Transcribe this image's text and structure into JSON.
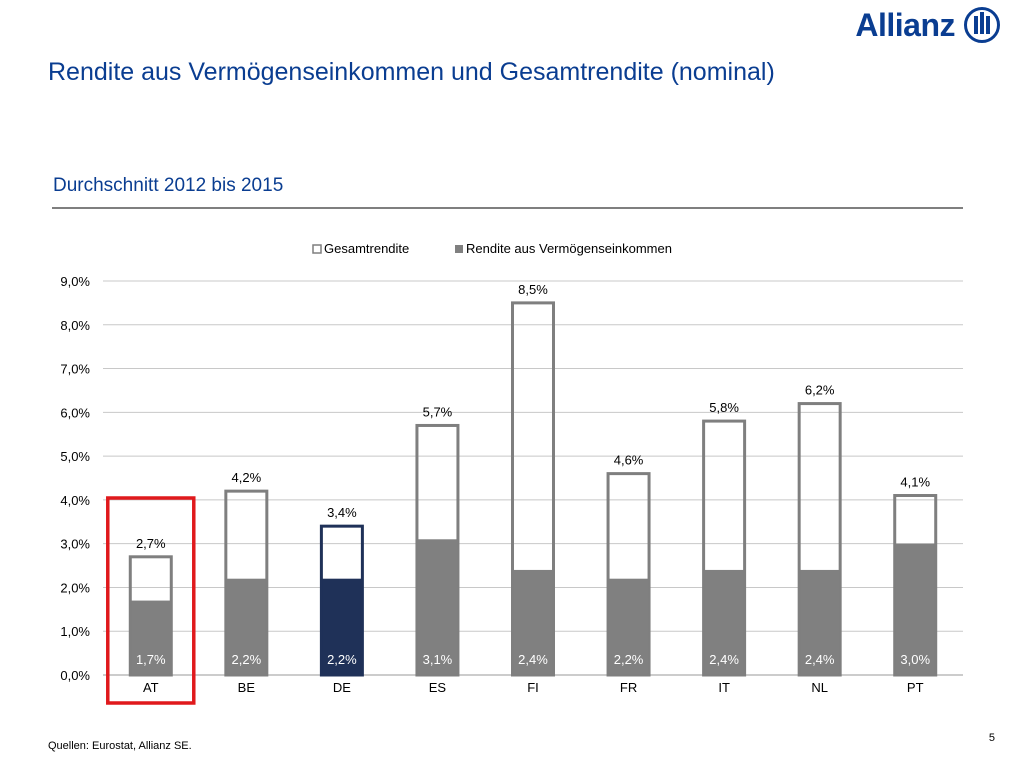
{
  "brand": {
    "name": "Allianz"
  },
  "page": {
    "title": "Rendite aus Vermögenseinkommen und Gesamtrendite (nominal)",
    "subtitle": "Durchschnitt 2012 bis 2015",
    "source": "Quellen: Eurostat, Allianz SE.",
    "page_number": "5"
  },
  "colors": {
    "brand_blue": "#0a3d91",
    "gesamt_border": "#7f7f7f",
    "vermoegen_fill": "#808080",
    "highlight_fill": "#1f3158",
    "highlight_box": "#e0191c"
  },
  "chart_data": {
    "type": "bar",
    "stacking": "overlay",
    "categories": [
      "AT",
      "BE",
      "DE",
      "ES",
      "FI",
      "FR",
      "IT",
      "NL",
      "PT"
    ],
    "series": [
      {
        "name": "Gesamtrendite",
        "values": [
          2.7,
          4.2,
          3.4,
          5.7,
          8.5,
          4.6,
          5.8,
          6.2,
          4.1
        ],
        "labels": [
          "2,7%",
          "4,2%",
          "3,4%",
          "5,7%",
          "8,5%",
          "4,6%",
          "5,8%",
          "6,2%",
          "4,1%"
        ]
      },
      {
        "name": "Rendite aus Vermögenseinkommen",
        "values": [
          1.7,
          2.2,
          2.2,
          3.1,
          2.4,
          2.2,
          2.4,
          2.4,
          3.0
        ],
        "labels": [
          "1,7%",
          "2,2%",
          "2,2%",
          "3,1%",
          "2,4%",
          "2,2%",
          "2,4%",
          "2,4%",
          "3,0%"
        ]
      }
    ],
    "ylim": [
      0,
      9
    ],
    "yticks": [
      0,
      1,
      2,
      3,
      4,
      5,
      6,
      7,
      8,
      9
    ],
    "ytick_labels": [
      "0,0%",
      "1,0%",
      "2,0%",
      "3,0%",
      "4,0%",
      "5,0%",
      "6,0%",
      "7,0%",
      "8,0%",
      "9,0%"
    ],
    "grid": true,
    "legend_position": "top",
    "highlighted_category": "DE",
    "boxed_category": "AT"
  }
}
